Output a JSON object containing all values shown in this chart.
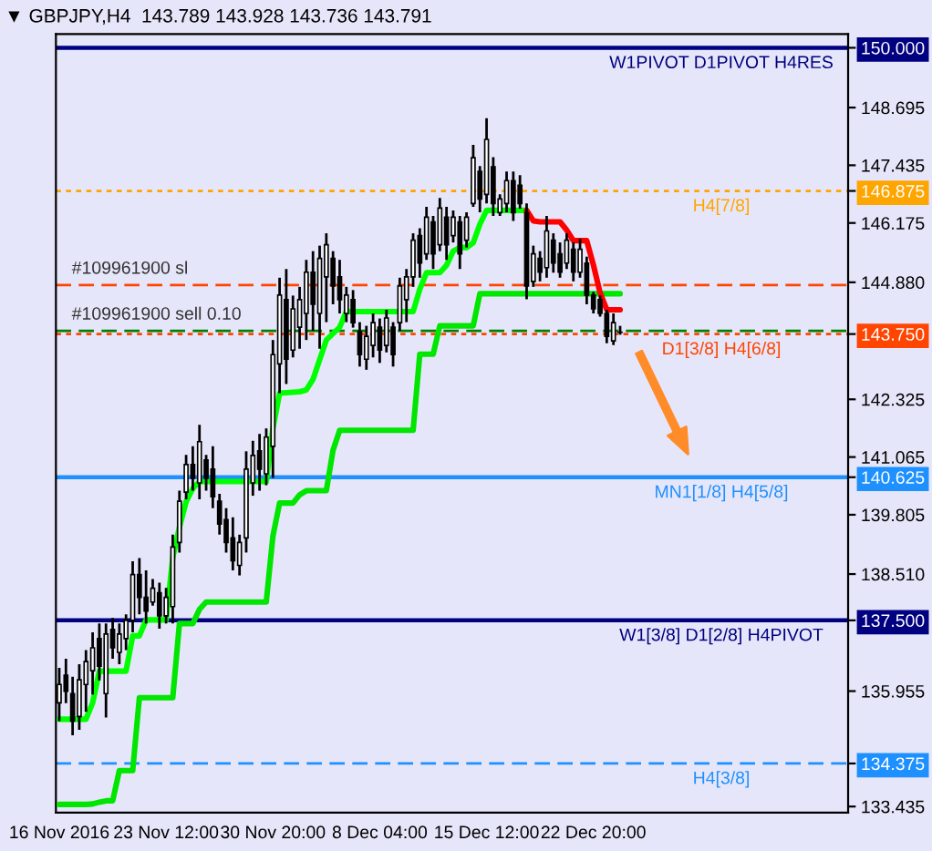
{
  "chart_data": {
    "type": "candlestick",
    "title": "▼ GBPJPY,H4  143.789 143.928 143.736 143.791",
    "categories": [
      "16 Nov 2016",
      null,
      null,
      null,
      null,
      null,
      null,
      null,
      null,
      null,
      null,
      null,
      null,
      null,
      null,
      null,
      "23 Nov 12:00",
      null,
      null,
      null,
      null,
      null,
      null,
      null,
      null,
      null,
      null,
      null,
      null,
      null,
      null,
      null,
      "30 Nov 20:00",
      null,
      null,
      null,
      null,
      null,
      null,
      null,
      null,
      null,
      null,
      null,
      null,
      null,
      null,
      null,
      "8 Dec 04:00",
      null,
      null,
      null,
      null,
      null,
      null,
      null,
      null,
      null,
      null,
      null,
      null,
      null,
      null,
      null,
      "15 Dec 12:00",
      null,
      null,
      null,
      null,
      null,
      null,
      null,
      null,
      null,
      null,
      null,
      null,
      null,
      null,
      null,
      "22 Dec 20:00",
      null,
      null,
      null,
      null
    ],
    "ohlc": [
      [
        135.7,
        136.46,
        135.3,
        136.1
      ],
      [
        136.3,
        136.66,
        135.69,
        135.95
      ],
      [
        135.9,
        136.27,
        134.99,
        135.3
      ],
      [
        135.4,
        136.54,
        135.11,
        136.2
      ],
      [
        136.1,
        136.85,
        135.5,
        136.6
      ],
      [
        136.4,
        137.24,
        135.88,
        136.9
      ],
      [
        137.1,
        137.43,
        136.19,
        136.5
      ],
      [
        135.9,
        137.43,
        135.38,
        137.2
      ],
      [
        137.3,
        137.55,
        136.66,
        136.9
      ],
      [
        136.8,
        137.43,
        136.54,
        137.2
      ],
      [
        137.1,
        137.63,
        136.85,
        137.5
      ],
      [
        137.5,
        138.79,
        137.24,
        138.5
      ],
      [
        138.5,
        138.86,
        137.63,
        138.0
      ],
      [
        138.0,
        138.59,
        137.43,
        137.7
      ],
      [
        137.9,
        138.4,
        137.82,
        138.2
      ],
      [
        138.1,
        138.32,
        137.32,
        137.6
      ],
      [
        137.6,
        138.21,
        137.43,
        138.0
      ],
      [
        137.8,
        139.37,
        137.43,
        139.1
      ],
      [
        139.2,
        140.33,
        138.98,
        140.1
      ],
      [
        140.3,
        141.11,
        140.14,
        140.9
      ],
      [
        140.9,
        141.3,
        140.33,
        140.6
      ],
      [
        140.5,
        141.77,
        140.14,
        141.4
      ],
      [
        141.0,
        141.11,
        140.33,
        140.6
      ],
      [
        140.8,
        141.3,
        139.95,
        140.2
      ],
      [
        140.1,
        140.26,
        139.37,
        139.6
      ],
      [
        139.7,
        139.95,
        138.98,
        139.2
      ],
      [
        139.3,
        139.75,
        138.59,
        138.8
      ],
      [
        138.7,
        139.37,
        138.48,
        139.2
      ],
      [
        139.3,
        141.19,
        138.98,
        140.8
      ],
      [
        140.5,
        141.42,
        140.22,
        141.1
      ],
      [
        141.2,
        141.57,
        140.33,
        140.8
      ],
      [
        140.7,
        141.69,
        140.45,
        141.5
      ],
      [
        141.3,
        143.62,
        140.61,
        143.3
      ],
      [
        143.1,
        144.98,
        142.46,
        144.6
      ],
      [
        144.5,
        145.17,
        142.66,
        143.2
      ],
      [
        143.4,
        144.59,
        143.24,
        144.3
      ],
      [
        143.9,
        144.78,
        143.43,
        144.5
      ],
      [
        144.2,
        145.37,
        143.62,
        145.1
      ],
      [
        145.1,
        145.56,
        143.82,
        144.4
      ],
      [
        144.2,
        145.68,
        143.43,
        145.4
      ],
      [
        145.0,
        145.95,
        144.01,
        145.7
      ],
      [
        145.4,
        145.56,
        144.4,
        144.8
      ],
      [
        145.0,
        145.37,
        144.2,
        144.5
      ],
      [
        144.2,
        144.78,
        144.01,
        144.6
      ],
      [
        144.5,
        144.71,
        143.89,
        144.0
      ],
      [
        143.8,
        144.01,
        143.04,
        143.3
      ],
      [
        143.2,
        143.93,
        142.97,
        143.7
      ],
      [
        143.5,
        144.2,
        143.24,
        144.0
      ],
      [
        143.9,
        144.09,
        143.12,
        143.4
      ],
      [
        143.5,
        144.28,
        143.35,
        144.1
      ],
      [
        143.9,
        144.01,
        143.04,
        143.3
      ],
      [
        144.0,
        144.98,
        143.82,
        144.8
      ],
      [
        144.5,
        145.17,
        144.01,
        145.0
      ],
      [
        145.0,
        145.95,
        144.78,
        145.8
      ],
      [
        145.9,
        146.06,
        144.98,
        145.3
      ],
      [
        145.5,
        146.53,
        145.37,
        146.3
      ],
      [
        146.2,
        146.33,
        145.17,
        145.5
      ],
      [
        145.7,
        146.72,
        145.56,
        146.5
      ],
      [
        146.3,
        146.53,
        145.37,
        145.7
      ],
      [
        145.9,
        146.45,
        145.75,
        146.3
      ],
      [
        146.2,
        146.33,
        145.17,
        145.5
      ],
      [
        145.8,
        146.41,
        145.64,
        146.3
      ],
      [
        146.6,
        147.88,
        146.53,
        147.6
      ],
      [
        147.3,
        147.42,
        146.41,
        146.7
      ],
      [
        146.8,
        148.46,
        146.6,
        148.0
      ],
      [
        147.4,
        147.61,
        146.33,
        146.6
      ],
      [
        146.4,
        146.8,
        146.33,
        146.7
      ],
      [
        146.6,
        147.3,
        146.41,
        147.1
      ],
      [
        147.1,
        147.3,
        146.22,
        146.4
      ],
      [
        147.0,
        147.22,
        146.49,
        146.6
      ],
      [
        146.4,
        146.6,
        144.51,
        144.8
      ],
      [
        144.9,
        145.68,
        144.78,
        145.5
      ],
      [
        145.4,
        145.56,
        144.9,
        145.1
      ],
      [
        145.2,
        146.33,
        144.98,
        146.0
      ],
      [
        145.8,
        145.95,
        145.09,
        145.3
      ],
      [
        145.5,
        145.75,
        144.98,
        145.1
      ],
      [
        145.3,
        145.95,
        145.17,
        145.8
      ],
      [
        145.6,
        145.75,
        144.9,
        145.1
      ],
      [
        145.1,
        145.83,
        144.98,
        145.6
      ],
      [
        145.3,
        145.44,
        144.4,
        144.6
      ],
      [
        144.6,
        144.67,
        144.2,
        144.3
      ],
      [
        144.5,
        144.59,
        144.13,
        144.2
      ],
      [
        144.2,
        144.28,
        143.55,
        143.7
      ],
      [
        143.6,
        144.2,
        143.51,
        144.0
      ],
      [
        143.789,
        143.928,
        143.736,
        143.791
      ]
    ],
    "series": [
      {
        "type": "line",
        "color": "#00ff00",
        "values": [
          135.34,
          135.34,
          135.34,
          135.34,
          135.34,
          135.7,
          136.39,
          136.39,
          136.39,
          136.39,
          136.39,
          137.16,
          137.16,
          137.51,
          137.51,
          137.51,
          137.51,
          138.87,
          139.53,
          140.09,
          140.38,
          140.53,
          140.53,
          140.53,
          140.53,
          140.53,
          140.53,
          140.53,
          140.53,
          140.53,
          140.53,
          140.53,
          141.69,
          142.46,
          142.47,
          142.48,
          142.49,
          142.53,
          142.76,
          143.19,
          143.62,
          143.76,
          143.9,
          144.24,
          144.24,
          144.24,
          144.24,
          144.24,
          144.24,
          144.24,
          144.24,
          144.24,
          144.24,
          144.24,
          144.73,
          145.09,
          145.09,
          145.09,
          145.25,
          145.56,
          145.64,
          145.64,
          145.74,
          146.15,
          146.45,
          146.45,
          146.45,
          146.45,
          146.45,
          146.45,
          146.45,
          null,
          null,
          null,
          null,
          null,
          null,
          null,
          null,
          null,
          null,
          null,
          null,
          null,
          null
        ]
      },
      {
        "type": "line",
        "color": "#00e600",
        "values": [
          133.48,
          133.48,
          133.48,
          133.48,
          133.48,
          133.49,
          133.53,
          133.56,
          133.56,
          134.22,
          134.22,
          134.22,
          135.81,
          135.81,
          135.81,
          135.81,
          135.81,
          135.81,
          137.43,
          137.43,
          137.43,
          137.74,
          137.9,
          137.9,
          137.9,
          137.9,
          137.9,
          137.9,
          137.9,
          137.9,
          137.9,
          137.9,
          139.34,
          140.06,
          140.06,
          140.06,
          140.24,
          140.33,
          140.33,
          140.33,
          140.33,
          141.21,
          141.65,
          141.65,
          141.65,
          141.65,
          141.65,
          141.65,
          141.65,
          141.65,
          141.65,
          141.65,
          141.65,
          141.65,
          143.31,
          143.31,
          143.31,
          143.93,
          143.93,
          143.93,
          143.93,
          143.93,
          143.93,
          144.63,
          144.63,
          144.63,
          144.63,
          144.63,
          144.63,
          144.63,
          144.63,
          144.63,
          144.63,
          144.63,
          144.63,
          144.63,
          144.63,
          144.63,
          144.63,
          144.63,
          144.63,
          144.63,
          144.63,
          144.63,
          144.63
        ]
      },
      {
        "type": "line",
        "color": "#ff0000",
        "values": [
          null,
          null,
          null,
          null,
          null,
          null,
          null,
          null,
          null,
          null,
          null,
          null,
          null,
          null,
          null,
          null,
          null,
          null,
          null,
          null,
          null,
          null,
          null,
          null,
          null,
          null,
          null,
          null,
          null,
          null,
          null,
          null,
          null,
          null,
          null,
          null,
          null,
          null,
          null,
          null,
          null,
          null,
          null,
          null,
          null,
          null,
          null,
          null,
          null,
          null,
          null,
          null,
          null,
          null,
          null,
          null,
          null,
          null,
          null,
          null,
          null,
          null,
          null,
          null,
          null,
          null,
          null,
          null,
          null,
          null,
          146.45,
          146.22,
          146.2,
          146.2,
          146.2,
          146.2,
          146.02,
          145.79,
          145.79,
          145.79,
          145.26,
          144.65,
          144.28,
          144.28,
          144.28
        ]
      }
    ],
    "ref_lines": [
      {
        "axis": "y",
        "value": 144.82,
        "label": "#109961900 sl",
        "color": "#ff4500",
        "line_style": "dashed"
      },
      {
        "axis": "y",
        "value": 143.82,
        "label": "#109961900 sell 0.10",
        "color": "#008000",
        "line_style": "dashed"
      },
      {
        "axis": "y",
        "value": 150.0,
        "label": "W1PIVOT D1PIVOT H4RES",
        "color": "#000080",
        "line_style": "solid"
      },
      {
        "axis": "y",
        "value": 146.875,
        "label": "H4[7/8]",
        "color": "#ffa500",
        "line_style": "dotted"
      },
      {
        "axis": "y",
        "value": 143.75,
        "label": "D1[3/8] H4[6/8]",
        "color": "#ff4500",
        "line_style": "dotted"
      },
      {
        "axis": "y",
        "value": 140.625,
        "label": "MN1[1/8] H4[5/8]",
        "color": "#1e90ff",
        "line_style": "solid"
      },
      {
        "axis": "y",
        "value": 137.5,
        "label": "W1[3/8] D1[2/8] H4PIVOT",
        "color": "#000080",
        "line_style": "solid"
      },
      {
        "axis": "y",
        "value": 134.375,
        "label": "H4[3/8]",
        "color": "#1e90ff",
        "line_style": "dashed"
      }
    ],
    "ylim": [
      133.3,
      150.3
    ],
    "yticks": [
      {
        "value": 150.0,
        "label": "150.000"
      },
      148.695,
      147.435,
      {
        "value": 146.875,
        "label": "146.875"
      },
      146.175,
      {
        "value": 144.88,
        "label": "144.880"
      },
      {
        "value": 143.75,
        "label": "143.750"
      },
      142.325,
      141.065,
      {
        "value": 140.625,
        "label": "140.625"
      },
      139.805,
      {
        "value": 138.51,
        "label": "138.510"
      },
      {
        "value": 137.5,
        "label": "137.500"
      },
      135.955,
      {
        "value": 134.375,
        "label": "134.375"
      },
      133.435
    ],
    "grid": false,
    "legend": false
  }
}
